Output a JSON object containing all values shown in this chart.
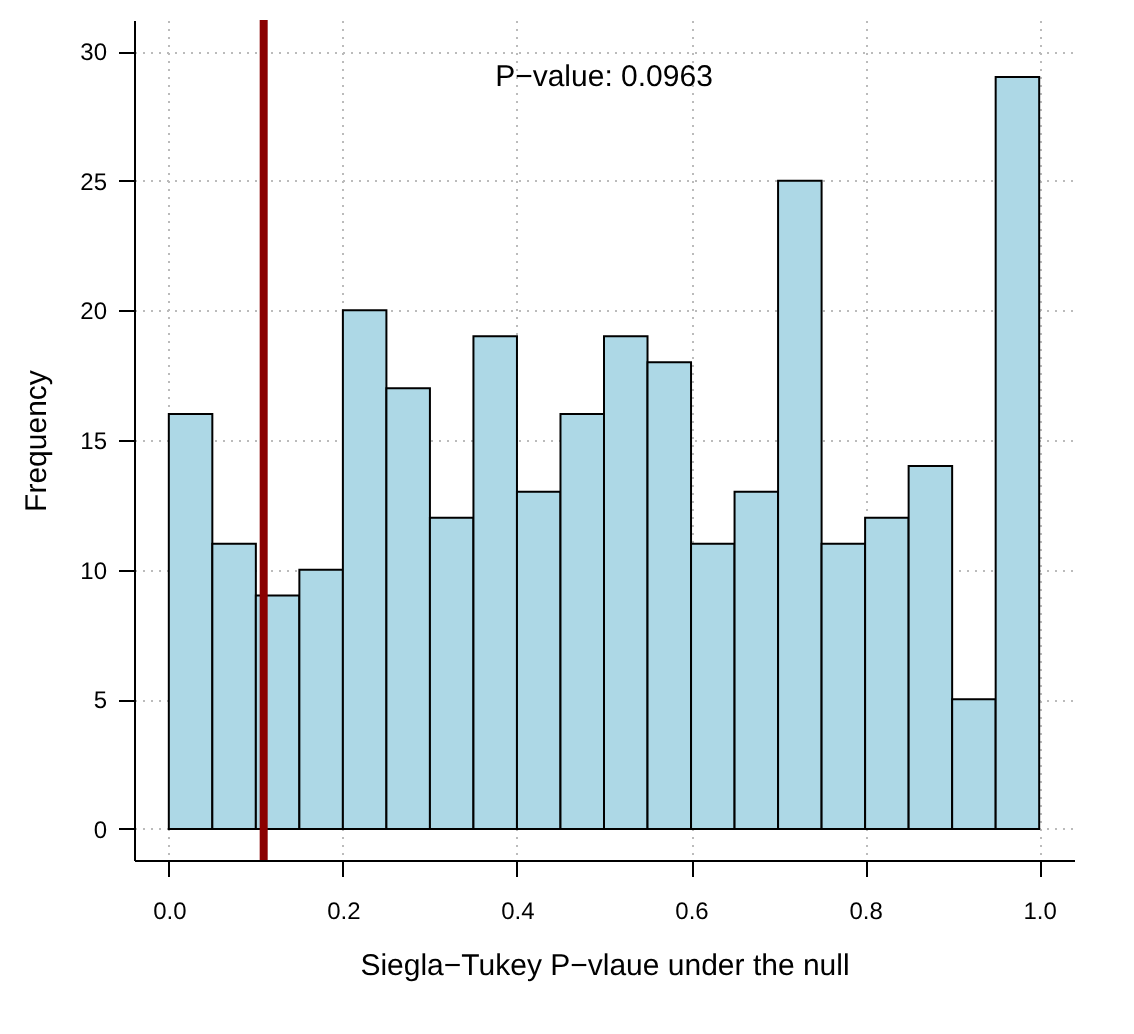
{
  "chart_data": {
    "type": "histogram",
    "xlabel": "Siegla−Tukey P−vlaue under the null",
    "ylabel": "Frequency",
    "bins": [
      0,
      0.05,
      0.1,
      0.15,
      0.2,
      0.25,
      0.3,
      0.35,
      0.4,
      0.45,
      0.5,
      0.55,
      0.6,
      0.65,
      0.7,
      0.75,
      0.8,
      0.85,
      0.9,
      0.95,
      1
    ],
    "values": [
      16,
      11,
      9,
      10,
      20,
      17,
      12,
      19,
      13,
      16,
      19,
      18,
      11,
      13,
      25,
      11,
      12,
      14,
      5,
      29
    ],
    "color": "#add8e6",
    "xlim": [
      -0.04,
      1.04
    ],
    "xticks": [
      {
        "value": 0,
        "label": "0.0"
      },
      0.2,
      0.4,
      0.6,
      0.8,
      {
        "value": 1,
        "label": "1.0"
      }
    ],
    "ylim": [
      -1.2,
      31.2
    ],
    "yticks": [
      0,
      5,
      10,
      15,
      20,
      25,
      30
    ],
    "grid": true,
    "ref_lines": [
      {
        "axis": "x",
        "value": 0.109,
        "color": "#8b0000"
      }
    ],
    "annotations": [
      "P−value:  0.0963"
    ]
  }
}
